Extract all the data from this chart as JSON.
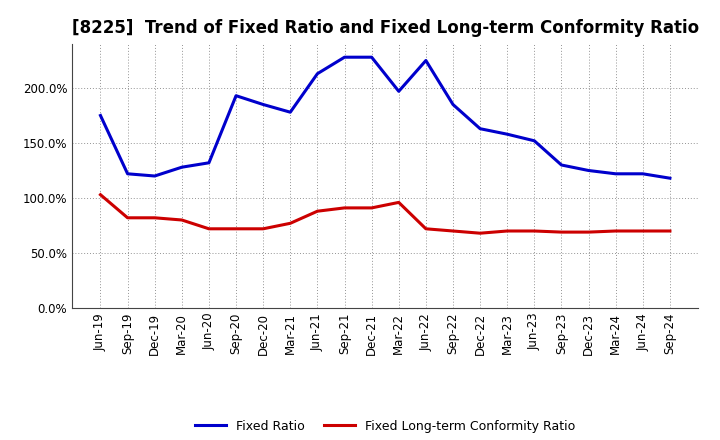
{
  "title": "[8225]  Trend of Fixed Ratio and Fixed Long-term Conformity Ratio",
  "x_labels": [
    "Jun-19",
    "Sep-19",
    "Dec-19",
    "Mar-20",
    "Jun-20",
    "Sep-20",
    "Dec-20",
    "Mar-21",
    "Jun-21",
    "Sep-21",
    "Dec-21",
    "Mar-22",
    "Jun-22",
    "Sep-22",
    "Dec-22",
    "Mar-23",
    "Jun-23",
    "Sep-23",
    "Dec-23",
    "Mar-24",
    "Jun-24",
    "Sep-24"
  ],
  "fixed_ratio": [
    175,
    122,
    120,
    128,
    132,
    193,
    185,
    178,
    213,
    228,
    228,
    197,
    225,
    185,
    163,
    158,
    152,
    130,
    125,
    122,
    122,
    118
  ],
  "fixed_lt_ratio": [
    103,
    82,
    82,
    80,
    72,
    72,
    72,
    77,
    88,
    91,
    91,
    96,
    72,
    70,
    68,
    70,
    70,
    69,
    69,
    70,
    70,
    70
  ],
  "fixed_ratio_color": "#0000CC",
  "fixed_lt_ratio_color": "#CC0000",
  "ylim": [
    0,
    240
  ],
  "yticks": [
    0,
    50,
    100,
    150,
    200
  ],
  "ytick_labels": [
    "0.0%",
    "50.0%",
    "100.0%",
    "150.0%",
    "200.0%"
  ],
  "background_color": "#FFFFFF",
  "plot_bg_color": "#FFFFFF",
  "grid_color": "#888888",
  "legend_fixed_ratio": "Fixed Ratio",
  "legend_fixed_lt_ratio": "Fixed Long-term Conformity Ratio",
  "title_fontsize": 12,
  "tick_fontsize": 8.5,
  "line_width": 2.2
}
